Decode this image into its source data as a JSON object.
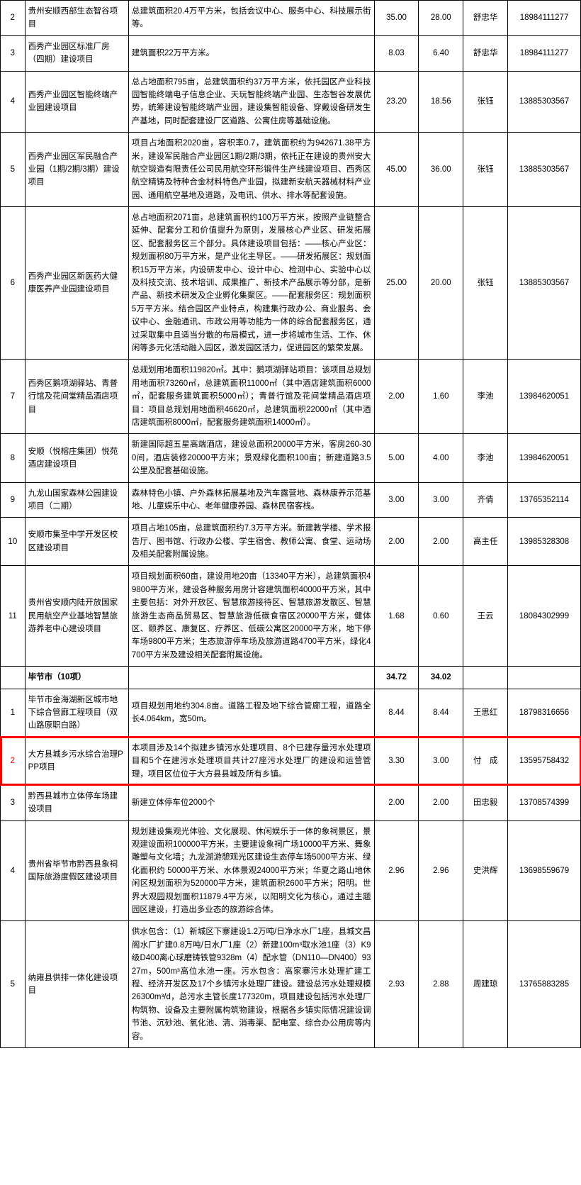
{
  "colors": {
    "border": "#000000",
    "highlight_border": "#ff0000",
    "background": "#ffffff",
    "text": "#000000"
  },
  "typography": {
    "font_family": "Microsoft YaHei, SimSun, sans-serif",
    "cell_font_size": 11.5,
    "line_height": 1.6
  },
  "column_widths": {
    "idx": 32,
    "name": 135,
    "desc": 320,
    "num1": 58,
    "num2": 58,
    "person": 58,
    "phone": 95
  },
  "rows": [
    {
      "idx": "2",
      "name": "贵州安顺西部生态智谷项目",
      "desc": "总建筑面积20.4万平方米，包括会议中心、服务中心、科技展示街等。",
      "n1": "35.00",
      "n2": "28.00",
      "p": "舒忠华",
      "ph": "18984111277"
    },
    {
      "idx": "3",
      "name": "西秀产业园区标准厂房（四期）建设项目",
      "desc": "建筑面积22万平方米。",
      "n1": "8.03",
      "n2": "6.40",
      "p": "舒忠华",
      "ph": "18984111277"
    },
    {
      "idx": "4",
      "name": "西秀产业园区智能终端产业园建设项目",
      "desc": "总占地面积795亩，总建筑面积约37万平方米，依托园区产业科技园智能终端电子信息企业、天玩智能终端产业园、生态智谷发展优势，统筹建设智能终端产业园，建设集智能设备、穿戴设备研发生产基地，同时配套建设厂区道路、公寓住房等基础设施。",
      "n1": "23.20",
      "n2": "18.56",
      "p": "张钰",
      "ph": "13885303567"
    },
    {
      "idx": "5",
      "name": "西秀产业园区军民融合产业园（1期/2期/3期）建设项目",
      "desc": "项目占地面积2020亩，容积率0.7，建筑面积约为942671.38平方米，建设军民融合产业园区1期/2期/3期，依托正在建设的贵州安大航空锻造有限责任公司民用航空环形锻件生产线建设项目、西秀区航空精铸及特种合金材料特色产业园，拟建新安航天器械材料产业园、通用航空基地及道路，及电讯、供水、排水等配套设施。",
      "n1": "45.00",
      "n2": "36.00",
      "p": "张钰",
      "ph": "13885303567"
    },
    {
      "idx": "6",
      "name": "西秀产业园区新医药大健康医养产业园建设项目",
      "desc": "总占地面积2071亩，总建筑面积约100万平方米，按照产业链整合延伸、配套分工和价值提升为原则，发展核心产业区、研发拓展区、配套服务区三个部分。具体建设项目包括：——核心产业区：规划面积80万平方米，是产业化主导区。——研发拓展区：规划面积15万平方米，内设研发中心、设计中心、检测中心、实验中心以及科技交流、技术培训、成果推广、新技术产品展示等分部，是新产品、新技术研发及企业孵化集聚区。——配套服务区：规划面积5万平方米。结合园区产业特点，构建集行政办公、商业服务、会议中心、金融通讯、市政公用等功能为一体的综合配套服务区，通过采取集中且适当分散的布局模式，进一步将城市生活、工作、休闲等多元化活动融入园区，激发园区活力，促进园区的繁荣发展。",
      "n1": "25.00",
      "n2": "20.00",
      "p": "张钰",
      "ph": "13885303567"
    },
    {
      "idx": "7",
      "name": "西秀区鹅项湖驿站、青普行馆及花间堂精品酒店项目",
      "desc": "总规划用地面积119820㎡。其中：鹅项湖驿站项目：该项目总规划用地面积73260㎡，总建筑面积11000㎡（其中酒店建筑面积6000㎡，配套服务建筑面积5000㎡）；青普行馆及花间堂精品酒店项目：项目总规划用地面积46620㎡，总建筑面积22000㎡（其中酒店建筑面积8000㎡，配套服务建筑面积14000㎡）。",
      "n1": "2.00",
      "n2": "1.60",
      "p": "李池",
      "ph": "13984620051"
    },
    {
      "idx": "8",
      "name": "安顺（悦榕庄集团）悦苑酒店建设项目",
      "desc": "新建国际超五星高端酒店，建设总面积20000平方米，客房260-300间，酒店装修20000平方米；景观绿化面积100亩；新建道路3.5公里及配套基础设施。",
      "n1": "5.00",
      "n2": "4.00",
      "p": "李池",
      "ph": "13984620051"
    },
    {
      "idx": "9",
      "name": "九龙山国家森林公园建设项目（二期）",
      "desc": "森林特色小镇、户外森林拓展基地及汽车露营地、森林康养示范基地、儿童娱乐中心、老年健康养园、森林民宿客栈。",
      "n1": "3.00",
      "n2": "3.00",
      "p": "齐倩",
      "ph": "13765352114"
    },
    {
      "idx": "10",
      "name": "安顺市集圣中学开发区校区建设项目",
      "desc": "项目占地105亩，总建筑面积约7.3万平方米。新建教学楼、学术报告厅、图书馆、行政办公楼、学生宿舍、教师公寓、食堂、运动场及相关配套附属设施。",
      "n1": "2.00",
      "n2": "2.00",
      "p": "高主任",
      "ph": "13985328308"
    },
    {
      "idx": "11",
      "name": "贵州省安顺内陆开放国家民用航空产业基地智慧旅游养老中心建设项目",
      "desc": "项目规划面积60亩，建设用地20亩（13340平方米），总建筑面积49800平方米，建设各种服务用房计容建筑面积40000平方米，其中主要包括：对外开放区、智慧旅游接待区、智慧旅游发散区、智慧旅游生态商品贸易区、智慧旅游低碳食宿区20000平方米，健体区、颐养区、康复区、疗养区、低碳公寓区20000平方米，地下停车场9800平方米；生态旅游停车场及旅游道路4700平方米，绿化4700平方米及建设相关配套附属设施。",
      "n1": "1.68",
      "n2": "0.60",
      "p": "王云",
      "ph": "18084302999"
    },
    {
      "section": true,
      "name": "毕节市（10项）",
      "n1": "34.72",
      "n2": "34.02"
    },
    {
      "idx": "1",
      "name": "毕节市金海湖新区城市地下综合管廊工程项目（双山路原职白路）",
      "desc": "项目规划用地约304.8亩。道路工程及地下综合管廊工程，道路全长4.064km，宽50m。",
      "n1": "8.44",
      "n2": "8.44",
      "p": "王思红",
      "ph": "18798316656"
    },
    {
      "idx": "2",
      "highlight": true,
      "name": "大方县城乡污水综合治理PPP项目",
      "desc": "本项目涉及14个拟建乡镇污水处理项目、8个已建存量污水处理项目和5个在建污水处理项目共计27座污水处理厂的建设和运营管理，项目区位位于大方县县城及所有乡镇。",
      "n1": "3.30",
      "n2": "3.00",
      "p": "付　成",
      "ph": "13595758432"
    },
    {
      "idx": "3",
      "name": "黔西县城市立体停车场建设项目",
      "desc": "新建立体停车位2000个",
      "n1": "2.00",
      "n2": "2.00",
      "p": "田忠毅",
      "ph": "13708574399"
    },
    {
      "idx": "4",
      "name": "贵州省毕节市黔西县象祠国际旅游度假区建设项目",
      "desc": "规划建设集观光体验、文化展现、休闲娱乐于一体的象祠景区，景观建设面积100000平方米，主要建设象祠广场10000平方米、舞象雕塑与文化墙；九龙湖游憩观光区建设生态停车场5000平方米、绿化面积约 50000平方米、水体景观24000平方米；华夏之路山地休闲区规划面积为520000平方米，建筑面积2600平方米；阳明。世界大观园规划面积11879.4平方米，以阳明文化为核心，通过主题园区建设，打造出多业态的旅游综合体。",
      "n1": "2.96",
      "n2": "2.96",
      "p": "史洪辉",
      "ph": "13698559679"
    },
    {
      "idx": "5",
      "name": "纳雍县供排一体化建设项目",
      "desc": "供水包含：（1）新城区下寨建设1.2万吨/日净水水厂1座，县城文昌阁水厂扩建0.8万吨/日水厂1座（2）新建100m³取水池1座（3）K9级D400离心球磨铸铁管9328m（4）配水管（DN110—DN400）9327m，500m³高位水池一座。污水包含：高家寨污水处理扩建工程、经济开发区及17个乡镇污水处理厂建设。建设总污水处理规模26300m³/d，总污水主管长度177320m，项目建设包括污水处理厂构筑物、设备及主要附属构筑物建设，根据各乡镇实际情况建设调节池、沉砂池、氧化池、清、消毒渠、配电室、综合办公用房等内容。",
      "n1": "2.93",
      "n2": "2.88",
      "p": "周建琼",
      "ph": "13765883285"
    }
  ]
}
